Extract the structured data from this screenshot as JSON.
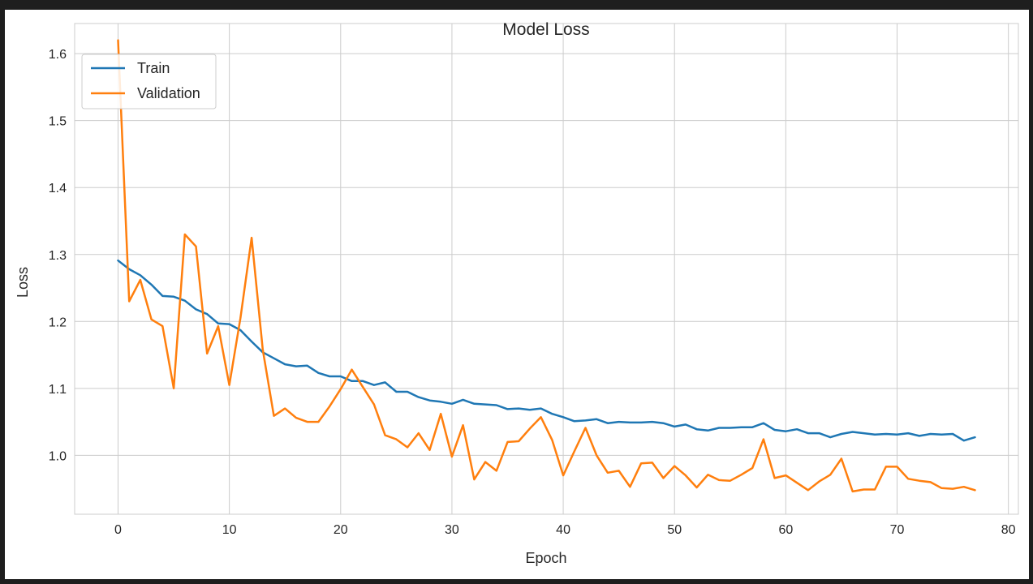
{
  "chart_data": {
    "type": "line",
    "title": "Model Loss",
    "xlabel": "Epoch",
    "ylabel": "Loss",
    "xlim": [
      -3.9,
      80.9
    ],
    "ylim": [
      0.912,
      1.645
    ],
    "xticks": [
      0,
      10,
      20,
      30,
      40,
      50,
      60,
      70,
      80
    ],
    "yticks": [
      1.0,
      1.1,
      1.2,
      1.3,
      1.4,
      1.5,
      1.6
    ],
    "grid": true,
    "legend_position": "top-left",
    "series": [
      {
        "name": "Train",
        "color": "#1f77b4",
        "x": [
          0,
          1,
          2,
          3,
          4,
          5,
          6,
          7,
          8,
          9,
          10,
          11,
          12,
          13,
          14,
          15,
          16,
          17,
          18,
          19,
          20,
          21,
          22,
          23,
          24,
          25,
          26,
          27,
          28,
          29,
          30,
          31,
          32,
          33,
          34,
          35,
          36,
          37,
          38,
          39,
          40,
          41,
          42,
          43,
          44,
          45,
          46,
          47,
          48,
          49,
          50,
          51,
          52,
          53,
          54,
          55,
          56,
          57,
          58,
          59,
          60,
          61,
          62,
          63,
          64,
          65,
          66,
          67,
          68,
          69,
          70,
          71,
          72,
          73,
          74,
          75,
          76,
          77
        ],
        "values": [
          1.291,
          1.278,
          1.269,
          1.255,
          1.238,
          1.237,
          1.231,
          1.218,
          1.211,
          1.197,
          1.196,
          1.187,
          1.17,
          1.154,
          1.145,
          1.136,
          1.133,
          1.134,
          1.123,
          1.118,
          1.118,
          1.111,
          1.111,
          1.105,
          1.109,
          1.095,
          1.095,
          1.087,
          1.082,
          1.08,
          1.077,
          1.083,
          1.077,
          1.076,
          1.075,
          1.069,
          1.07,
          1.068,
          1.07,
          1.062,
          1.057,
          1.051,
          1.052,
          1.054,
          1.048,
          1.05,
          1.049,
          1.049,
          1.05,
          1.048,
          1.043,
          1.046,
          1.039,
          1.037,
          1.041,
          1.041,
          1.042,
          1.042,
          1.048,
          1.038,
          1.036,
          1.039,
          1.033,
          1.033,
          1.027,
          1.032,
          1.035,
          1.033,
          1.031,
          1.032,
          1.031,
          1.033,
          1.029,
          1.032,
          1.031,
          1.032,
          1.022,
          1.027
        ]
      },
      {
        "name": "Validation",
        "color": "#ff7f0e",
        "x": [
          0,
          1,
          2,
          3,
          4,
          5,
          6,
          7,
          8,
          9,
          10,
          11,
          12,
          13,
          14,
          15,
          16,
          17,
          18,
          19,
          20,
          21,
          22,
          23,
          24,
          25,
          26,
          27,
          28,
          29,
          30,
          31,
          32,
          33,
          34,
          35,
          36,
          37,
          38,
          39,
          40,
          41,
          42,
          43,
          44,
          45,
          46,
          47,
          48,
          49,
          50,
          51,
          52,
          53,
          54,
          55,
          56,
          57,
          58,
          59,
          60,
          61,
          62,
          63,
          64,
          65,
          66,
          67,
          68,
          69,
          70,
          71,
          72,
          73,
          74,
          75,
          76,
          77
        ],
        "values": [
          1.62,
          1.23,
          1.262,
          1.203,
          1.193,
          1.1,
          1.33,
          1.312,
          1.152,
          1.193,
          1.105,
          1.205,
          1.325,
          1.158,
          1.059,
          1.07,
          1.056,
          1.05,
          1.05,
          1.073,
          1.099,
          1.128,
          1.102,
          1.076,
          1.03,
          1.024,
          1.012,
          1.033,
          1.008,
          1.062,
          0.998,
          1.045,
          0.964,
          0.99,
          0.977,
          1.02,
          1.021,
          1.04,
          1.057,
          1.023,
          0.97,
          1.006,
          1.041,
          1.0,
          0.974,
          0.977,
          0.953,
          0.988,
          0.989,
          0.966,
          0.984,
          0.97,
          0.952,
          0.971,
          0.963,
          0.962,
          0.971,
          0.981,
          1.024,
          0.966,
          0.97,
          0.959,
          0.948,
          0.961,
          0.971,
          0.995,
          0.946,
          0.949,
          0.949,
          0.983,
          0.983,
          0.965,
          0.962,
          0.96,
          0.951,
          0.95,
          0.953,
          0.948
        ]
      }
    ]
  }
}
